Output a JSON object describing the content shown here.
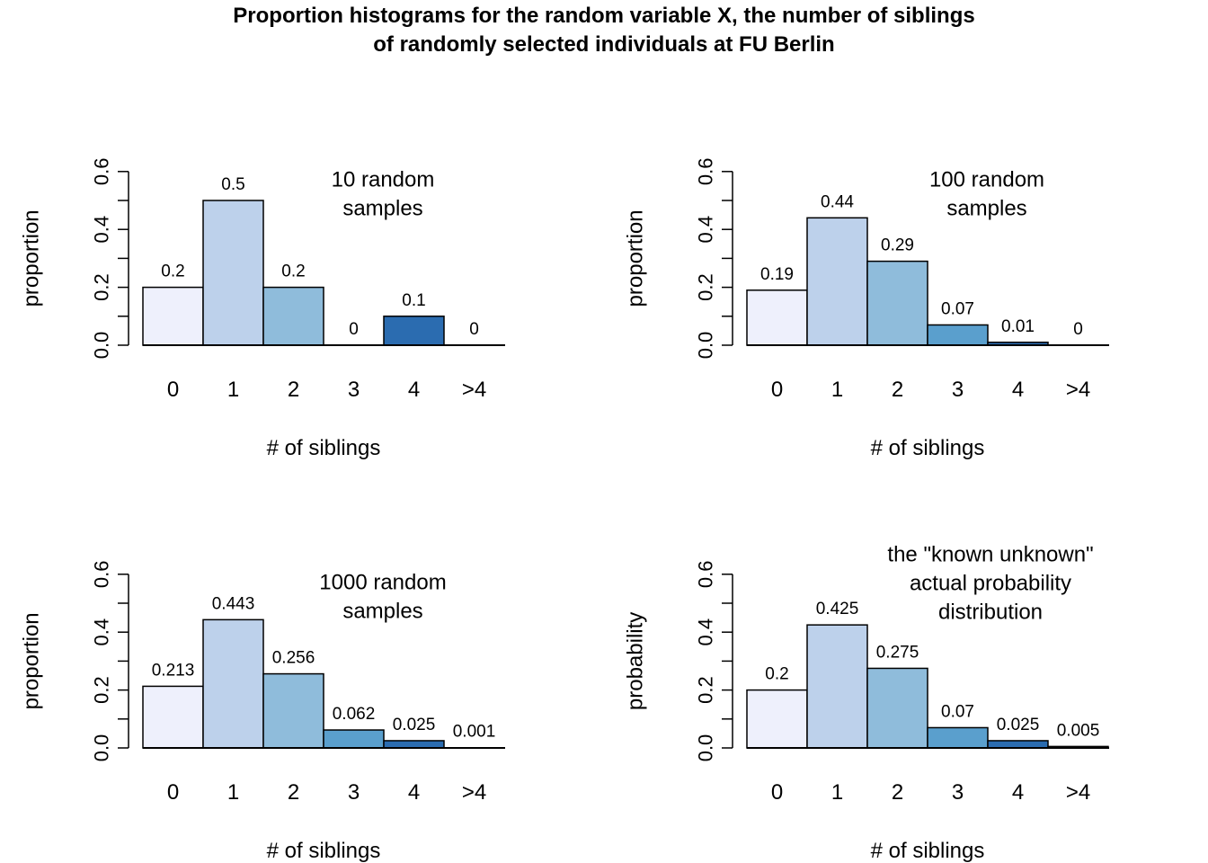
{
  "title_line1": "Proportion histograms for the random variable X, the number of siblings",
  "title_line2": "of randomly selected individuals at FU Berlin",
  "colors": [
    "#eef0fc",
    "#bdd1eb",
    "#8fbcdb",
    "#5a9fcd",
    "#2b6cb0",
    "#0b3c7e"
  ],
  "chart_data": [
    {
      "type": "bar",
      "categories": [
        "0",
        "1",
        "2",
        "3",
        "4",
        ">4"
      ],
      "values": [
        0.2,
        0.5,
        0.2,
        0,
        0.1,
        0
      ],
      "value_labels": [
        "0.2",
        "0.5",
        "0.2",
        "0",
        "0.1",
        "0"
      ],
      "xlabel": "# of siblings",
      "ylabel": "proportion",
      "ylim": [
        0,
        0.6
      ],
      "yticks": [
        "0.0",
        "0.2",
        "0.4",
        "0.6"
      ],
      "annotation": [
        "10 random",
        "samples"
      ]
    },
    {
      "type": "bar",
      "categories": [
        "0",
        "1",
        "2",
        "3",
        "4",
        ">4"
      ],
      "values": [
        0.19,
        0.44,
        0.29,
        0.07,
        0.01,
        0
      ],
      "value_labels": [
        "0.19",
        "0.44",
        "0.29",
        "0.07",
        "0.01",
        "0"
      ],
      "xlabel": "# of siblings",
      "ylabel": "proportion",
      "ylim": [
        0,
        0.6
      ],
      "yticks": [
        "0.0",
        "0.2",
        "0.4",
        "0.6"
      ],
      "annotation": [
        "100 random",
        "samples"
      ]
    },
    {
      "type": "bar",
      "categories": [
        "0",
        "1",
        "2",
        "3",
        "4",
        ">4"
      ],
      "values": [
        0.213,
        0.443,
        0.256,
        0.062,
        0.025,
        0.001
      ],
      "value_labels": [
        "0.213",
        "0.443",
        "0.256",
        "0.062",
        "0.025",
        "0.001"
      ],
      "xlabel": "# of siblings",
      "ylabel": "proportion",
      "ylim": [
        0,
        0.6
      ],
      "yticks": [
        "0.0",
        "0.2",
        "0.4",
        "0.6"
      ],
      "annotation": [
        "1000 random",
        "samples"
      ]
    },
    {
      "type": "bar",
      "categories": [
        "0",
        "1",
        "2",
        "3",
        "4",
        ">4"
      ],
      "values": [
        0.2,
        0.425,
        0.275,
        0.07,
        0.025,
        0.005
      ],
      "value_labels": [
        "0.2",
        "0.425",
        "0.275",
        "0.07",
        "0.025",
        "0.005"
      ],
      "xlabel": "# of siblings",
      "ylabel": "probability",
      "ylim": [
        0,
        0.6
      ],
      "yticks": [
        "0.0",
        "0.2",
        "0.4",
        "0.6"
      ],
      "annotation": [
        "the \"known unknown\"",
        "actual probability",
        "distribution"
      ]
    }
  ]
}
